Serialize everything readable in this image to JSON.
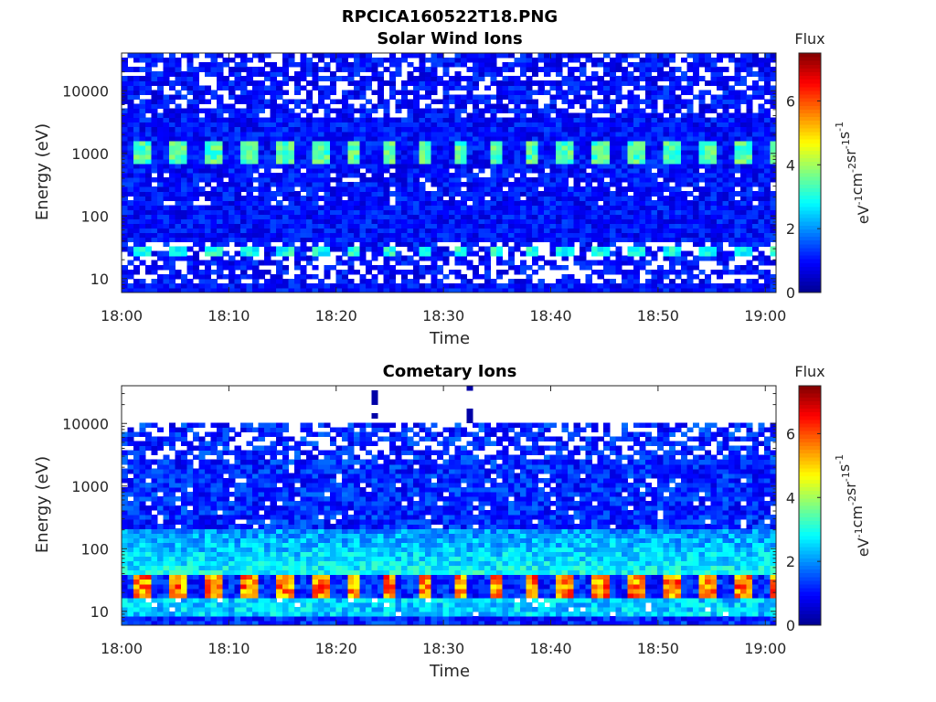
{
  "figure_title": "RPCICA160522T18.PNG",
  "colormap": [
    "#00008f",
    "#0000ff",
    "#0080ff",
    "#00ffff",
    "#80ff80",
    "#ffff00",
    "#ff8000",
    "#ff0000",
    "#800000"
  ],
  "chart_data": [
    {
      "type": "heatmap",
      "title": "Solar Wind Ions",
      "xlabel": "Time",
      "ylabel": "Energy (eV)",
      "x_ticks": [
        "18:00",
        "18:10",
        "18:20",
        "18:30",
        "18:40",
        "18:50",
        "19:00"
      ],
      "x_range": [
        "18:00",
        "19:01"
      ],
      "y_scale": "log",
      "y_ticks": [
        10,
        100,
        1000,
        10000
      ],
      "y_range": [
        6,
        40000
      ],
      "colorbar": {
        "title": "Flux",
        "unit_base": "eV",
        "unit_exps": [
          "-1",
          "-2",
          "-1",
          "-1"
        ],
        "unit_parts": [
          "cm",
          "sr",
          "s"
        ],
        "range": [
          0,
          7.5
        ],
        "ticks": [
          0,
          2,
          4,
          6
        ]
      },
      "features": {
        "background_flux": 1.0,
        "bands": [
          {
            "energy_range": [
              700,
              1500
            ],
            "flux": 3.3,
            "periodic": true,
            "period_min": 3.3
          },
          {
            "energy_range": [
              22,
              34
            ],
            "flux": 2.9,
            "periodic": true,
            "period_min": 3.3
          }
        ],
        "sparse_rows_energy_above": 4000,
        "gap_rows_energy_range": [
          8,
          40
        ]
      }
    },
    {
      "type": "heatmap",
      "title": "Cometary Ions",
      "xlabel": "Time",
      "ylabel": "Energy (eV)",
      "x_ticks": [
        "18:00",
        "18:10",
        "18:20",
        "18:30",
        "18:40",
        "18:50",
        "19:00"
      ],
      "x_range": [
        "18:00",
        "19:01"
      ],
      "y_scale": "log",
      "y_ticks": [
        10,
        100,
        1000,
        10000
      ],
      "y_range": [
        6,
        40000
      ],
      "colorbar": {
        "title": "Flux",
        "unit_base": "eV",
        "unit_exps": [
          "-1",
          "-2",
          "-1",
          "-1"
        ],
        "unit_parts": [
          "cm",
          "sr",
          "s"
        ],
        "range": [
          0,
          7.5
        ],
        "ticks": [
          0,
          2,
          4,
          6
        ]
      },
      "features": {
        "data_ceiling_energy": 11000,
        "background_flux": 1.2,
        "bands": [
          {
            "energy_range": [
              18,
              40
            ],
            "flux": 5.5,
            "periodic": true,
            "period_min": 3.3
          },
          {
            "energy_range": [
              8,
              18
            ],
            "flux": 2.6,
            "periodic": false
          }
        ],
        "spikes_time": [
          "18:23:40",
          "18:32:20"
        ],
        "spike_energy_range": [
          11000,
          40000
        ]
      }
    }
  ]
}
